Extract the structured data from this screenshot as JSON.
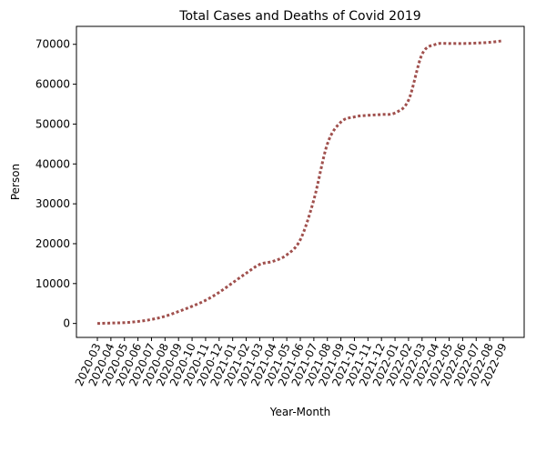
{
  "chart_data": {
    "type": "line",
    "title": "Total Cases and Deaths of Covid 2019",
    "xlabel": "Year-Month",
    "ylabel": "Person",
    "ylim": [
      -3500,
      74500
    ],
    "yticks": [
      0,
      10000,
      20000,
      30000,
      40000,
      50000,
      60000,
      70000
    ],
    "ytick_labels": [
      "0",
      "10000",
      "20000",
      "30000",
      "40000",
      "50000",
      "60000",
      "70000"
    ],
    "categories": [
      "2020-03",
      "2020-04",
      "2020-05",
      "2020-06",
      "2020-07",
      "2020-08",
      "2020-09",
      "2020-10",
      "2020-11",
      "2020-12",
      "2021-01",
      "2021-02",
      "2021-03",
      "2021-04",
      "2021-05",
      "2021-06",
      "2021-07",
      "2021-08",
      "2021-09",
      "2021-10",
      "2021-11",
      "2021-12",
      "2022-01",
      "2022-02",
      "2022-03",
      "2022-04",
      "2022-05",
      "2022-06",
      "2022-07",
      "2022-08",
      "2022-09"
    ],
    "series": [
      {
        "color": "#a0504d",
        "line_style": "dotted",
        "values": [
          0,
          100,
          200,
          500,
          1000,
          1800,
          3000,
          4300,
          5800,
          7800,
          10200,
          12600,
          14800,
          15600,
          17200,
          21000,
          31000,
          45000,
          50500,
          51800,
          52200,
          52400,
          52800,
          56000,
          67500,
          70000,
          70200,
          70200,
          70300,
          70500,
          70900
        ]
      }
    ],
    "grid": false,
    "legend": "none"
  }
}
